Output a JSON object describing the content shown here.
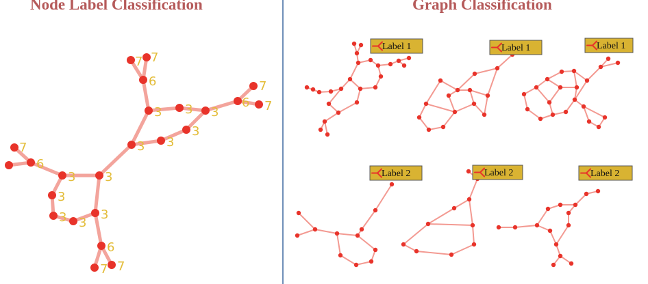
{
  "titles": {
    "left": "Node Label Classification",
    "right": "Graph Classification"
  },
  "node_labels": [
    "7",
    "7",
    "6",
    "3",
    "3",
    "3",
    "6",
    "7",
    "7",
    "3",
    "3",
    "3",
    "7",
    "6",
    "3",
    "3",
    "3",
    "3",
    "3",
    "3",
    "6",
    "7",
    "7"
  ],
  "graph_labels": [
    "Label 1",
    "Label 1",
    "Label 1",
    "Label 2",
    "Label 2",
    "Label 2"
  ],
  "colors": {
    "title": "#b55a5a",
    "node": "#e8332a",
    "edge": "#f3a49c",
    "node_label": "#e3bc38",
    "badge": "#d9b332",
    "divider": "#6f8fb8"
  },
  "icons": {
    "badge": "branch-icon"
  }
}
